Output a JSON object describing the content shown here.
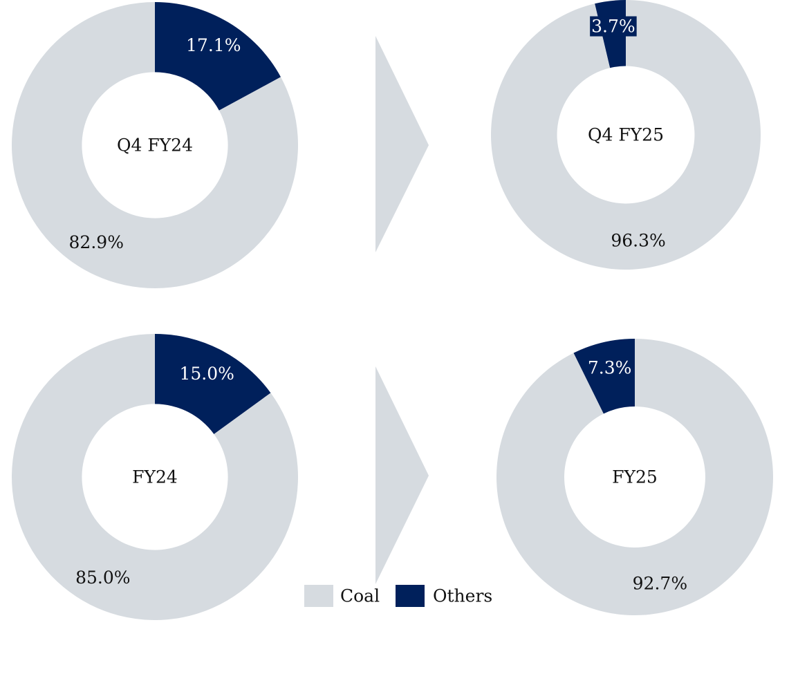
{
  "legend": {
    "items": [
      {
        "name": "Coal",
        "color": "#d6dbe0"
      },
      {
        "name": "Others",
        "color": "#00205b"
      }
    ]
  },
  "chart_data": [
    {
      "type": "pie",
      "title": "Q4 FY24",
      "values": [
        82.9,
        17.1
      ],
      "value_labels": [
        "82.9%",
        "17.1%"
      ],
      "counterclock": false
    },
    {
      "type": "pie",
      "title": "Q4 FY25",
      "values": [
        96.3,
        3.7
      ],
      "value_labels": [
        "96.3%",
        "3.7%"
      ],
      "counterclock": true
    },
    {
      "type": "pie",
      "title": "FY24",
      "values": [
        85.0,
        15.0
      ],
      "value_labels": [
        "85.0%",
        "15.0%"
      ],
      "counterclock": false
    },
    {
      "type": "pie",
      "title": "FY25",
      "values": [
        92.7,
        7.3
      ],
      "value_labels": [
        "92.7%",
        "7.3%"
      ],
      "counterclock": true
    }
  ]
}
